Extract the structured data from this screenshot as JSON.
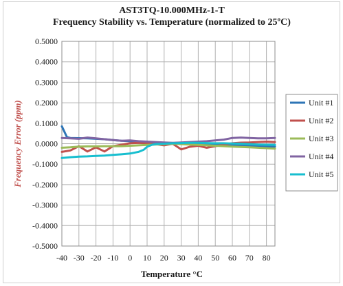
{
  "chart_data": {
    "type": "line",
    "title": "AST3TQ-10.000MHz-1-T",
    "subtitle": "Frequency Stability vs. Temperature (normalized to 25ºC)",
    "xlabel": "Temperature °C",
    "ylabel": "Frequency Error (ppm)",
    "xlim": [
      -40,
      85
    ],
    "ylim": [
      -0.5,
      0.5
    ],
    "xticks": [
      "-40",
      "-30",
      "-20",
      "-10",
      "0",
      "10",
      "20",
      "30",
      "40",
      "50",
      "60",
      "70",
      "80"
    ],
    "yticks": [
      "0.5000",
      "0.4000",
      "0.3000",
      "0.2000",
      "0.1000",
      "0.0000",
      "-0.1000",
      "-0.2000",
      "-0.3000",
      "-0.4000",
      "-0.5000"
    ],
    "grid": true,
    "legend_position": "right",
    "colors": {
      "ylabel": "#c0504d",
      "grid": "#b0b0b0"
    },
    "series": [
      {
        "name": "Unit #1",
        "color": "#2e75b6",
        "x": [
          -40,
          -37,
          -35,
          -30,
          -25,
          -20,
          -15,
          -10,
          -5,
          0,
          5,
          10,
          15,
          20,
          25,
          30,
          35,
          40,
          45,
          50,
          55,
          60,
          65,
          70,
          75,
          80,
          85
        ],
        "y": [
          0.085,
          0.032,
          0.028,
          0.027,
          0.026,
          0.024,
          0.022,
          0.018,
          0.014,
          0.012,
          0.01,
          0.008,
          0.006,
          0.004,
          0.002,
          0.0,
          -0.002,
          -0.004,
          -0.005,
          -0.006,
          -0.007,
          -0.008,
          -0.009,
          -0.01,
          -0.012,
          -0.013,
          -0.014
        ]
      },
      {
        "name": "Unit #2",
        "color": "#c0504d",
        "x": [
          -40,
          -35,
          -30,
          -25,
          -20,
          -15,
          -10,
          -5,
          0,
          5,
          10,
          15,
          20,
          25,
          30,
          35,
          40,
          45,
          50,
          55,
          60,
          65,
          70,
          75,
          80,
          85
        ],
        "y": [
          -0.04,
          -0.033,
          -0.012,
          -0.038,
          -0.018,
          -0.038,
          -0.012,
          -0.005,
          0.002,
          0.004,
          0.002,
          -0.002,
          -0.008,
          0.0,
          -0.028,
          -0.015,
          -0.01,
          -0.02,
          -0.012,
          -0.005,
          0.002,
          0.005,
          0.006,
          0.008,
          0.01,
          0.008
        ]
      },
      {
        "name": "Unit #3",
        "color": "#9bbb59",
        "x": [
          -40,
          -35,
          -30,
          -25,
          -20,
          -15,
          -10,
          -5,
          0,
          5,
          10,
          15,
          20,
          25,
          30,
          35,
          40,
          45,
          50,
          55,
          60,
          65,
          70,
          75,
          80,
          85
        ],
        "y": [
          -0.02,
          -0.018,
          -0.014,
          -0.013,
          -0.013,
          -0.012,
          -0.012,
          -0.012,
          -0.01,
          -0.008,
          -0.006,
          -0.004,
          -0.002,
          0.0,
          -0.002,
          -0.004,
          -0.006,
          -0.008,
          -0.01,
          -0.012,
          -0.014,
          -0.016,
          -0.018,
          -0.02,
          -0.022,
          -0.024
        ]
      },
      {
        "name": "Unit #4",
        "color": "#8064a2",
        "x": [
          -40,
          -35,
          -30,
          -25,
          -20,
          -15,
          -10,
          -5,
          0,
          5,
          10,
          15,
          20,
          25,
          30,
          35,
          40,
          45,
          50,
          55,
          60,
          65,
          70,
          75,
          80,
          85
        ],
        "y": [
          0.028,
          0.026,
          0.024,
          0.03,
          0.026,
          0.022,
          0.018,
          0.014,
          0.016,
          0.012,
          0.01,
          0.008,
          0.006,
          0.004,
          0.006,
          0.008,
          0.01,
          0.012,
          0.016,
          0.02,
          0.028,
          0.03,
          0.028,
          0.026,
          0.026,
          0.028
        ]
      },
      {
        "name": "Unit #5",
        "color": "#17becf",
        "x": [
          -40,
          -35,
          -30,
          -25,
          -20,
          -15,
          -10,
          -5,
          0,
          3,
          5,
          8,
          10,
          13,
          15,
          20,
          25,
          30,
          35,
          40,
          45,
          50,
          55,
          60,
          65,
          70,
          75,
          80,
          85
        ],
        "y": [
          -0.07,
          -0.066,
          -0.063,
          -0.062,
          -0.06,
          -0.058,
          -0.055,
          -0.052,
          -0.048,
          -0.043,
          -0.04,
          -0.03,
          -0.015,
          -0.005,
          -0.002,
          0.0,
          0.002,
          0.003,
          0.004,
          0.004,
          0.003,
          0.002,
          0.002,
          0.001,
          0.0,
          -0.002,
          -0.004,
          -0.005,
          -0.006
        ]
      }
    ]
  }
}
